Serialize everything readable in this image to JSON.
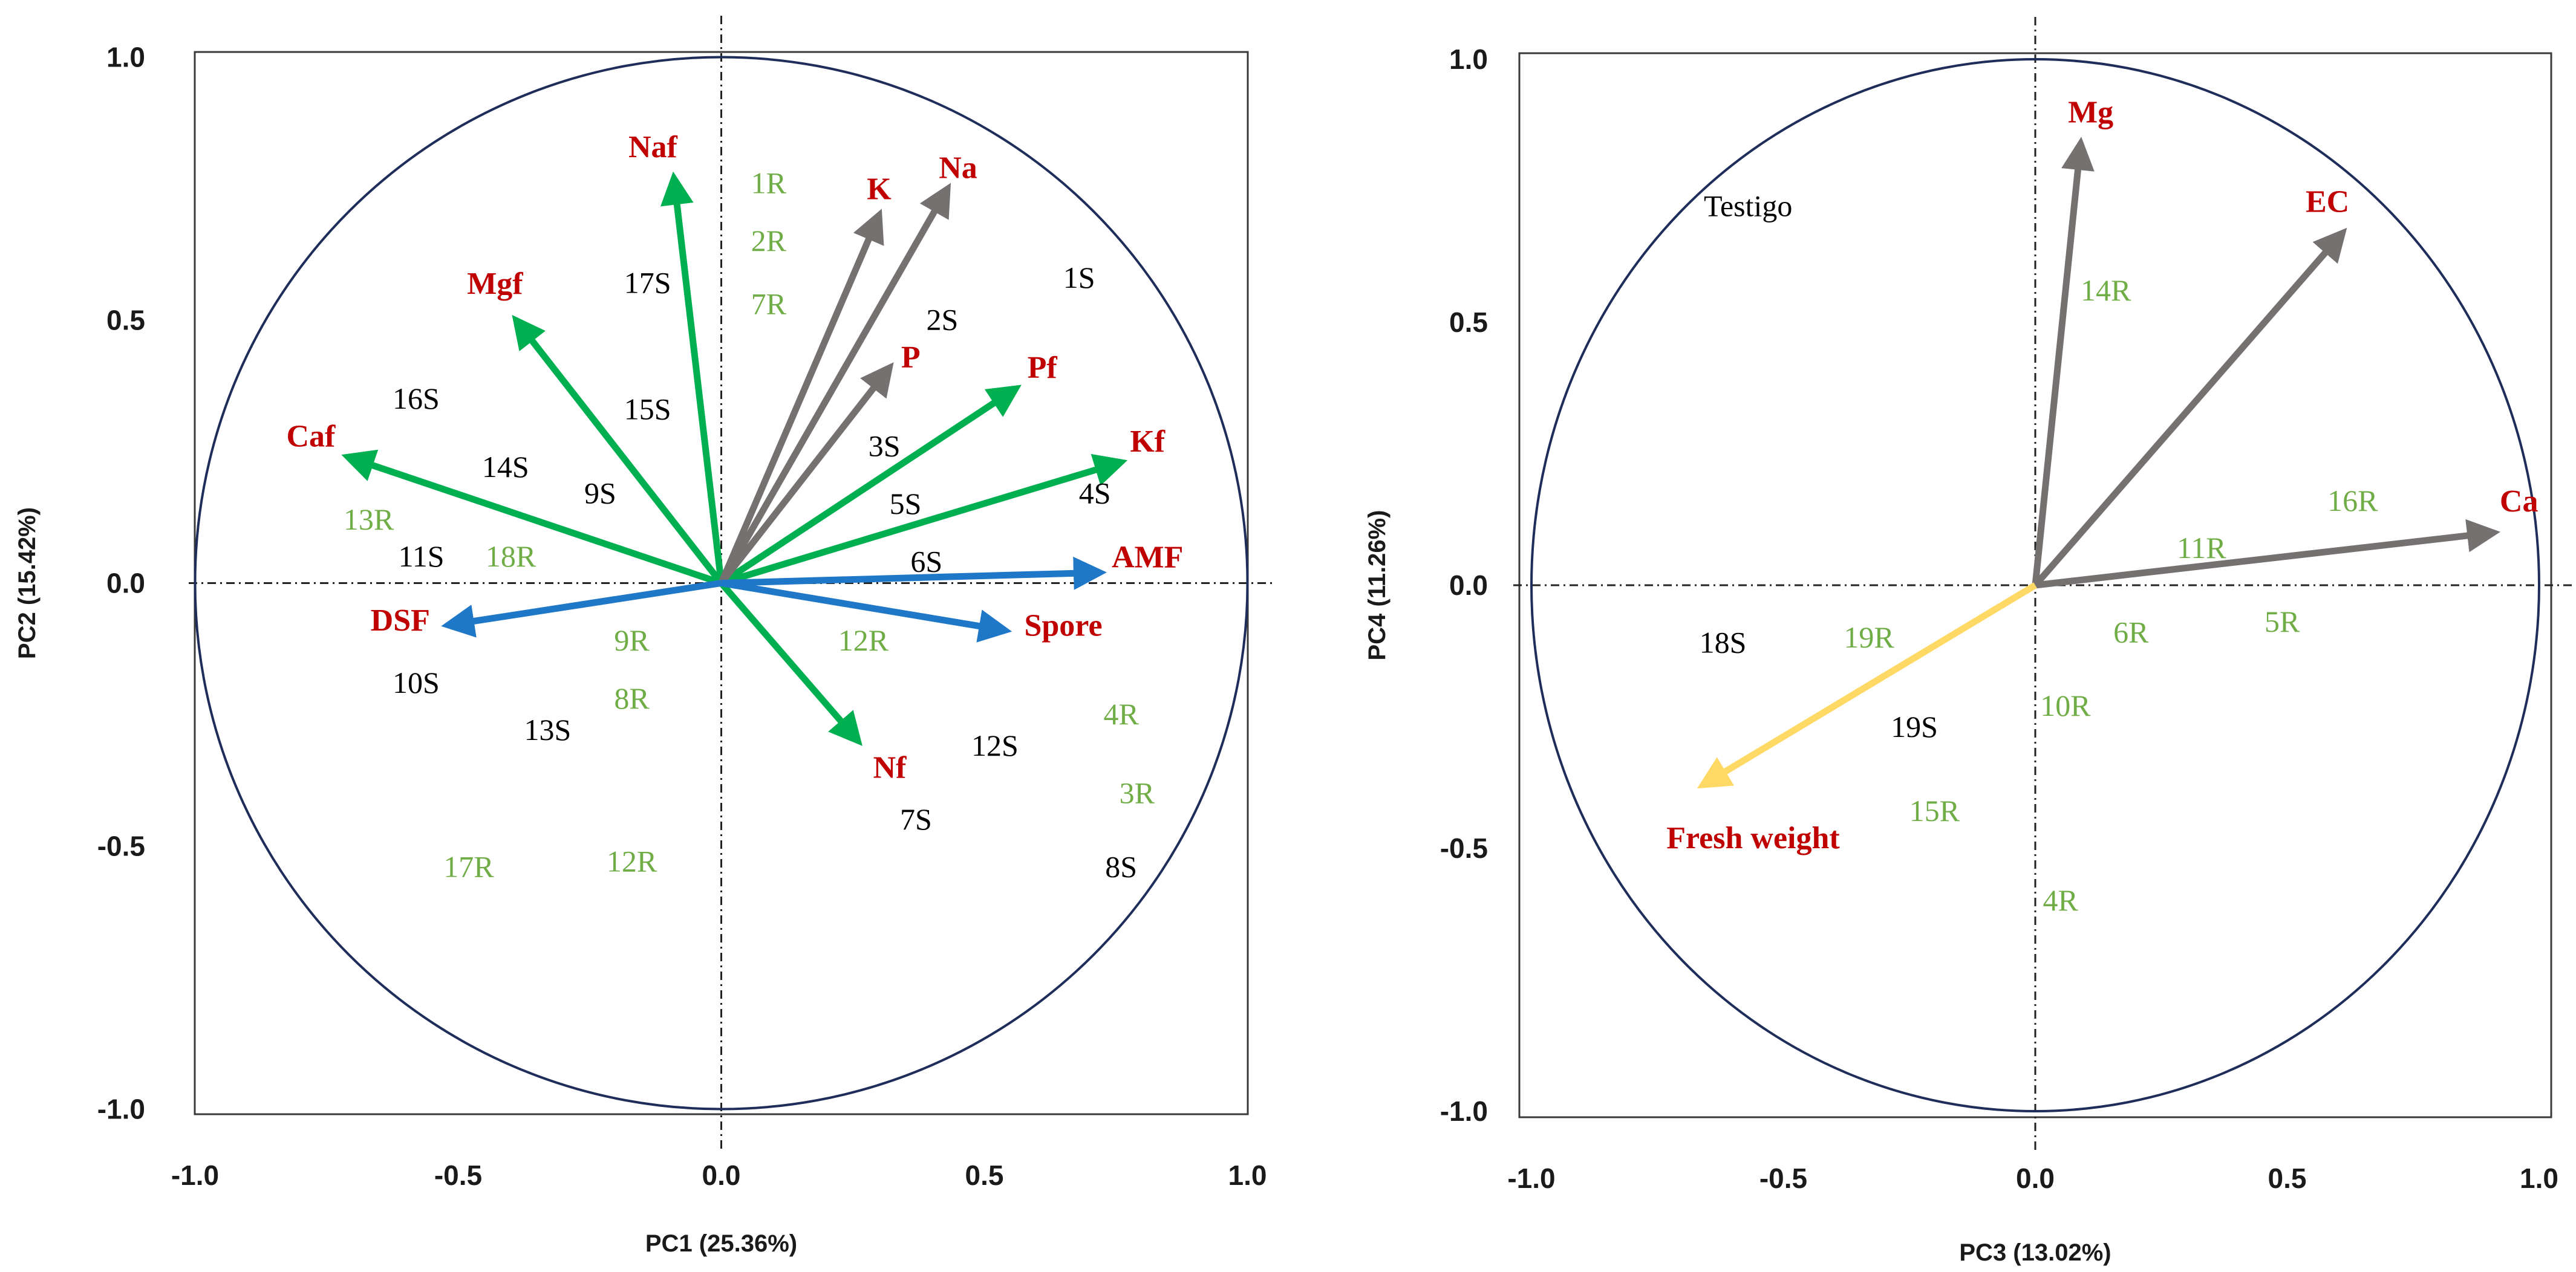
{
  "colors": {
    "var_label": "#c00000",
    "resistant": "#70ad47",
    "susceptible": "#000000",
    "green_arrow": "#00b050",
    "blue_arrow": "#1f77c8",
    "gray_arrow": "#767171",
    "yellow_arrow": "#ffd966",
    "circle": "#1f2d5a"
  },
  "chart_data": [
    {
      "type": "scatter",
      "title": "",
      "xlabel": "PC1 (25.36%)",
      "ylabel": "PC2 (15.42%)",
      "xlim": [
        -1.0,
        1.0
      ],
      "ylim": [
        -1.0,
        1.0
      ],
      "xticks": [
        "-1.0",
        "-0.5",
        "0.0",
        "0.5",
        "1.0"
      ],
      "yticks": [
        "1.0",
        "0.5",
        "0.0",
        "-0.5",
        "-1.0"
      ],
      "grid": false,
      "correlation_circle": true,
      "arrows": [
        {
          "name": "Naf",
          "x": -0.09,
          "y": 0.77,
          "color": "green",
          "lx": -0.13,
          "ly": 0.81
        },
        {
          "name": "Mgf",
          "x": -0.39,
          "y": 0.5,
          "color": "green",
          "lx": -0.43,
          "ly": 0.55
        },
        {
          "name": "Caf",
          "x": -0.71,
          "y": 0.24,
          "color": "green",
          "lx": -0.78,
          "ly": 0.26
        },
        {
          "name": "Pf",
          "x": 0.56,
          "y": 0.37,
          "color": "green",
          "lx": 0.61,
          "ly": 0.39
        },
        {
          "name": "Kf",
          "x": 0.76,
          "y": 0.23,
          "color": "green",
          "lx": 0.81,
          "ly": 0.25
        },
        {
          "name": "Nf",
          "x": 0.26,
          "y": -0.3,
          "color": "green",
          "lx": 0.32,
          "ly": -0.37
        },
        {
          "name": "K",
          "x": 0.3,
          "y": 0.7,
          "color": "gray",
          "lx": 0.3,
          "ly": 0.73
        },
        {
          "name": "Na",
          "x": 0.43,
          "y": 0.75,
          "color": "gray",
          "lx": 0.45,
          "ly": 0.77
        },
        {
          "name": "P",
          "x": 0.32,
          "y": 0.41,
          "color": "gray",
          "lx": 0.36,
          "ly": 0.41
        },
        {
          "name": "AMF",
          "x": 0.72,
          "y": 0.02,
          "color": "blue",
          "lx": 0.81,
          "ly": 0.03
        },
        {
          "name": "Spore",
          "x": 0.54,
          "y": -0.09,
          "color": "blue",
          "lx": 0.65,
          "ly": -0.1
        },
        {
          "name": "DSF",
          "x": -0.52,
          "y": -0.08,
          "color": "blue",
          "lx": -0.61,
          "ly": -0.09
        }
      ],
      "points": [
        {
          "label": "1R",
          "x": 0.09,
          "y": 0.76,
          "group": "R"
        },
        {
          "label": "2R",
          "x": 0.09,
          "y": 0.65,
          "group": "R"
        },
        {
          "label": "7R",
          "x": 0.09,
          "y": 0.53,
          "group": "R"
        },
        {
          "label": "1S",
          "x": 0.68,
          "y": 0.58,
          "group": "S"
        },
        {
          "label": "2S",
          "x": 0.42,
          "y": 0.5,
          "group": "S"
        },
        {
          "label": "3S",
          "x": 0.31,
          "y": 0.26,
          "group": "S"
        },
        {
          "label": "4S",
          "x": 0.71,
          "y": 0.17,
          "group": "S"
        },
        {
          "label": "5S",
          "x": 0.35,
          "y": 0.15,
          "group": "S"
        },
        {
          "label": "6S",
          "x": 0.39,
          "y": 0.04,
          "group": "S"
        },
        {
          "label": "17S",
          "x": -0.14,
          "y": 0.57,
          "group": "S"
        },
        {
          "label": "16S",
          "x": -0.58,
          "y": 0.35,
          "group": "S"
        },
        {
          "label": "15S",
          "x": -0.14,
          "y": 0.33,
          "group": "S"
        },
        {
          "label": "14S",
          "x": -0.41,
          "y": 0.22,
          "group": "S"
        },
        {
          "label": "9S",
          "x": -0.23,
          "y": 0.17,
          "group": "S"
        },
        {
          "label": "13R",
          "x": -0.67,
          "y": 0.12,
          "group": "R"
        },
        {
          "label": "11S",
          "x": -0.57,
          "y": 0.05,
          "group": "S"
        },
        {
          "label": "18R",
          "x": -0.4,
          "y": 0.05,
          "group": "R"
        },
        {
          "label": "9R",
          "x": -0.17,
          "y": -0.11,
          "group": "R"
        },
        {
          "label": "8R",
          "x": -0.17,
          "y": -0.22,
          "group": "R"
        },
        {
          "label": "10S",
          "x": -0.58,
          "y": -0.19,
          "group": "S"
        },
        {
          "label": "13S",
          "x": -0.33,
          "y": -0.28,
          "group": "S"
        },
        {
          "label": "12R",
          "x": 0.27,
          "y": -0.11,
          "group": "R"
        },
        {
          "label": "12S",
          "x": 0.52,
          "y": -0.31,
          "group": "S"
        },
        {
          "label": "4R",
          "x": 0.76,
          "y": -0.25,
          "group": "R"
        },
        {
          "label": "3R",
          "x": 0.79,
          "y": -0.4,
          "group": "R"
        },
        {
          "label": "7S",
          "x": 0.37,
          "y": -0.45,
          "group": "S"
        },
        {
          "label": "8S",
          "x": 0.76,
          "y": -0.54,
          "group": "S"
        },
        {
          "label": "17R",
          "x": -0.48,
          "y": -0.54,
          "group": "R"
        },
        {
          "label": "12R",
          "x": -0.17,
          "y": -0.53,
          "group": "R"
        }
      ]
    },
    {
      "type": "scatter",
      "title": "",
      "xlabel": "PC3 (13.02%)",
      "ylabel": "PC4 (11.26%)",
      "xlim": [
        -1.0,
        1.0
      ],
      "ylim": [
        -1.0,
        1.0
      ],
      "xticks": [
        "-1.0",
        "-0.5",
        "0.0",
        "0.5",
        "1.0"
      ],
      "yticks": [
        "1.0",
        "0.5",
        "0.0",
        "-0.5",
        "-1.0"
      ],
      "grid": false,
      "correlation_circle": true,
      "arrows": [
        {
          "name": "Mg",
          "x": 0.09,
          "y": 0.84,
          "color": "gray",
          "lx": 0.11,
          "ly": 0.88
        },
        {
          "name": "EC",
          "x": 0.61,
          "y": 0.67,
          "color": "gray",
          "lx": 0.58,
          "ly": 0.71
        },
        {
          "name": "Ca",
          "x": 0.91,
          "y": 0.1,
          "color": "gray",
          "lx": 0.96,
          "ly": 0.14
        },
        {
          "name": "Fresh weight",
          "x": -0.66,
          "y": -0.38,
          "color": "yellow",
          "lx": -0.56,
          "ly": -0.5
        }
      ],
      "points": [
        {
          "label": "Testigo",
          "x": -0.57,
          "y": 0.72,
          "group": "S"
        },
        {
          "label": "14R",
          "x": 0.14,
          "y": 0.56,
          "group": "R"
        },
        {
          "label": "16R",
          "x": 0.63,
          "y": 0.16,
          "group": "R"
        },
        {
          "label": "11R",
          "x": 0.33,
          "y": 0.07,
          "group": "R"
        },
        {
          "label": "6R",
          "x": 0.19,
          "y": -0.09,
          "group": "R"
        },
        {
          "label": "5R",
          "x": 0.49,
          "y": -0.07,
          "group": "R"
        },
        {
          "label": "18S",
          "x": -0.62,
          "y": -0.11,
          "group": "S"
        },
        {
          "label": "19R",
          "x": -0.33,
          "y": -0.1,
          "group": "R"
        },
        {
          "label": "10R",
          "x": 0.06,
          "y": -0.23,
          "group": "R"
        },
        {
          "label": "19S",
          "x": -0.24,
          "y": -0.27,
          "group": "S"
        },
        {
          "label": "15R",
          "x": -0.2,
          "y": -0.43,
          "group": "R"
        },
        {
          "label": "4R",
          "x": 0.05,
          "y": -0.6,
          "group": "R"
        }
      ]
    }
  ]
}
